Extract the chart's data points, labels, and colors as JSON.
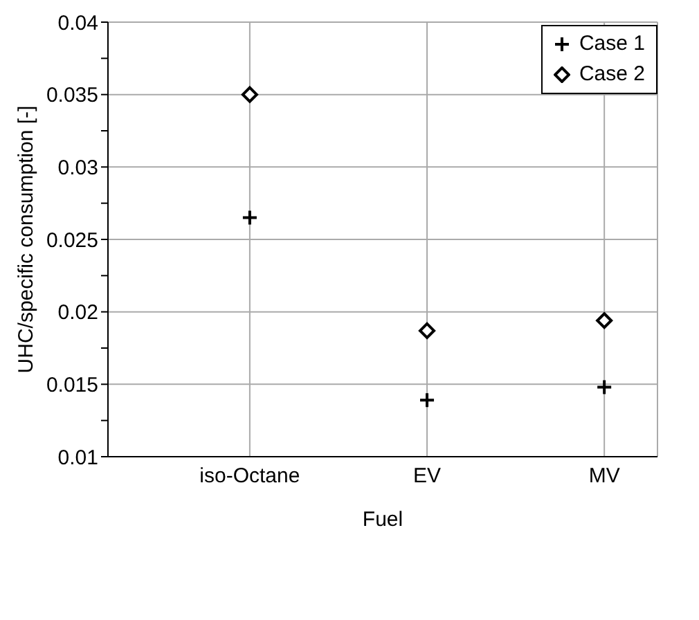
{
  "chart_data": {
    "type": "scatter",
    "xlabel": "Fuel",
    "ylabel": "UHC/specific consumption [-]",
    "categories": [
      "iso-Octane",
      "EV",
      "MV"
    ],
    "series": [
      {
        "name": "Case 1",
        "color": "#000000",
        "marker": "cross",
        "values": [
          0.0265,
          0.0139,
          0.0148
        ]
      },
      {
        "name": "Case 2",
        "color": "#000000",
        "marker": "diamond",
        "values": [
          0.035,
          0.0187,
          0.0194
        ]
      }
    ],
    "ylim": [
      0.01,
      0.04
    ],
    "yticks": [
      0.01,
      {
        "value": 0.0125,
        "label": null
      },
      0.015,
      {
        "value": 0.0175,
        "label": null
      },
      0.02,
      {
        "value": 0.0225,
        "label": null
      },
      0.025,
      {
        "value": 0.0275,
        "label": null
      },
      0.03,
      {
        "value": 0.0325,
        "label": null
      },
      0.035,
      {
        "value": 0.0375,
        "label": null
      },
      0.04
    ],
    "grid": true,
    "legend": "top right"
  }
}
